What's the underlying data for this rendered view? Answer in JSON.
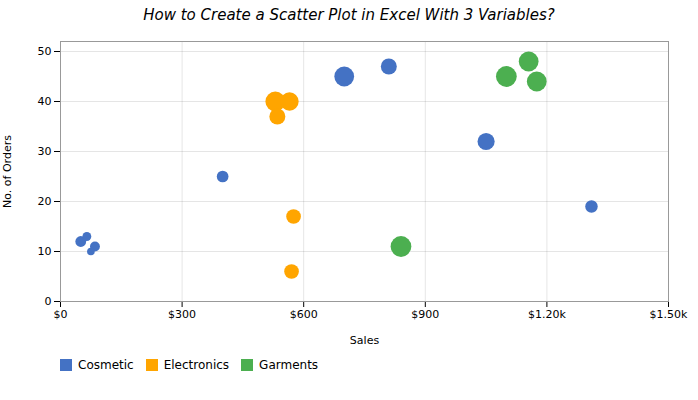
{
  "chart_data": {
    "type": "scatter",
    "title": "How to Create a Scatter Plot in Excel With 3 Variables?",
    "xlabel": "Sales",
    "ylabel": "No. of Orders",
    "series": [
      {
        "name": "Cosmetic",
        "color": "#4472C4",
        "x": [
          50,
          65,
          75,
          85,
          400,
          700,
          810,
          1050,
          1310
        ],
        "y": [
          12,
          13,
          10,
          11,
          25,
          45,
          47,
          32,
          19
        ],
        "size": [
          60,
          40,
          30,
          50,
          70,
          200,
          130,
          150,
          80
        ]
      },
      {
        "name": "Electronics",
        "color": "#FFA500",
        "x": [
          530,
          565,
          535,
          575,
          570
        ],
        "y": [
          40,
          40,
          37,
          17,
          6
        ],
        "size": [
          200,
          170,
          130,
          110,
          110
        ]
      },
      {
        "name": "Garments",
        "color": "#4CAF50",
        "x": [
          840,
          1100,
          1155,
          1175
        ],
        "y": [
          11,
          45,
          48,
          44
        ],
        "size": [
          220,
          220,
          200,
          200
        ]
      }
    ],
    "xlim": [
      0,
      1500
    ],
    "ylim": [
      0,
      52
    ],
    "xticks": [
      {
        "value": 0,
        "label": "$0"
      },
      {
        "value": 300,
        "label": "$300"
      },
      {
        "value": 600,
        "label": "$600"
      },
      {
        "value": 900,
        "label": "$900"
      },
      {
        "value": 1200,
        "label": "$1.20k"
      },
      {
        "value": 1500,
        "label": "$1.50k"
      }
    ],
    "yticks": [
      0,
      10,
      20,
      30,
      40,
      50
    ],
    "grid": true,
    "legend": "bottom"
  }
}
